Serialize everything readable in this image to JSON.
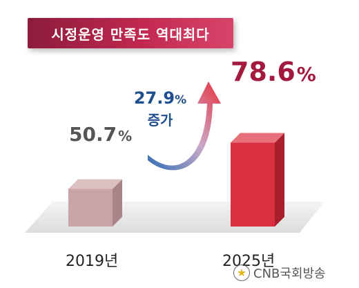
{
  "title": "시정운영 만족도 역대최다",
  "increase": {
    "value": "27.9",
    "unit": "%",
    "word": "증가"
  },
  "logo": {
    "text": "CNB국회방송"
  },
  "colors": {
    "banner": "#b3244a",
    "bar_2019": "#c9a4a7",
    "bar_2025": "#d92f3e",
    "value_2025": "#a41a3e",
    "increase_text": "#1f4f8c"
  },
  "chart_data": {
    "type": "bar",
    "categories": [
      "2019년",
      "2025년"
    ],
    "values": [
      50.7,
      78.6
    ],
    "unit": "%",
    "title": "시정운영 만족도 역대최다",
    "xlabel": "",
    "ylabel": "",
    "ylim": [
      0,
      100
    ],
    "grid": false,
    "style": "3d-bar",
    "value_labels": [
      "50.7",
      "78.6"
    ]
  }
}
